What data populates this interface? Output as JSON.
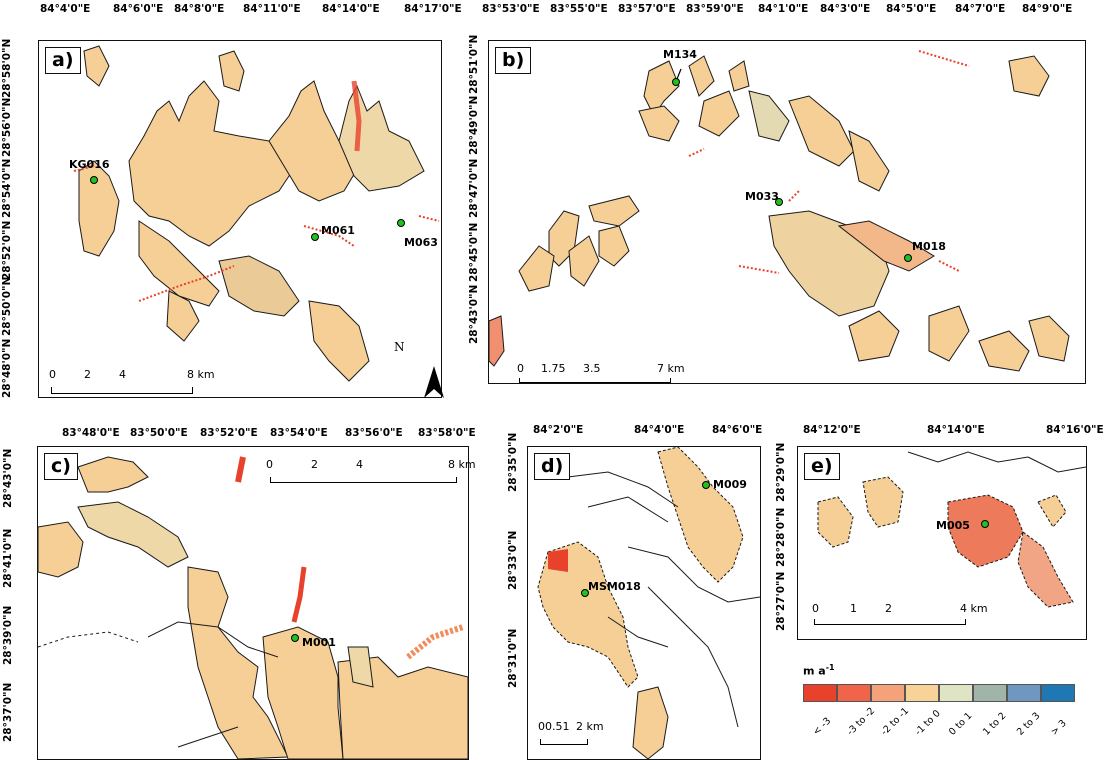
{
  "colors": {
    "outline": "#1a1a1a",
    "glacier_base": "#f6cf96",
    "pale": "#dfe3c6",
    "green": "#c8d6b2",
    "red": "#e8412c",
    "orange": "#f28c5a",
    "point": "#22c122"
  },
  "panels": {
    "a": {
      "label": "a)",
      "top_ticks": [
        "84°4'0\"E",
        "84°6'0\"E",
        "84°8'0\"E",
        "84°11'0\"E",
        "84°14'0\"E",
        "84°17'0\"E"
      ],
      "left_ticks": [
        "28°58'0\"N",
        "28°56'0\"N",
        "28°54'0\"N",
        "28°52'0\"N",
        "28°50'0\"N",
        "28°48'0\"N"
      ],
      "sites": [
        "KG016",
        "M061",
        "M063"
      ],
      "scale": {
        "labels": [
          "0",
          "2",
          "4",
          "8 km"
        ]
      },
      "north": "N"
    },
    "b": {
      "label": "b)",
      "top_ticks": [
        "83°53'0\"E",
        "83°55'0\"E",
        "83°57'0\"E",
        "83°59'0\"E",
        "84°1'0\"E",
        "84°3'0\"E",
        "84°5'0\"E",
        "84°7'0\"E",
        "84°9'0\"E"
      ],
      "left_ticks": [
        "28°51'0\"N",
        "28°49'0\"N",
        "28°47'0\"N",
        "28°45'0\"N",
        "28°43'0\"N"
      ],
      "sites": [
        "M134",
        "M033",
        "M018"
      ],
      "scale": {
        "labels": [
          "0",
          "1.75",
          "3.5",
          "7 km"
        ]
      }
    },
    "c": {
      "label": "c)",
      "top_ticks": [
        "83°48'0\"E",
        "83°50'0\"E",
        "83°52'0\"E",
        "83°54'0\"E",
        "83°56'0\"E",
        "83°58'0\"E"
      ],
      "left_ticks": [
        "28°43'0\"N",
        "28°41'0\"N",
        "28°39'0\"N",
        "28°37'0\"N"
      ],
      "sites": [
        "M001"
      ],
      "scale": {
        "labels": [
          "0",
          "2",
          "4",
          "8 km"
        ]
      }
    },
    "d": {
      "label": "d)",
      "top_ticks": [
        "84°2'0\"E",
        "84°4'0\"E",
        "84°6'0\"E"
      ],
      "left_ticks": [
        "28°35'0\"N",
        "28°33'0\"N",
        "28°31'0\"N"
      ],
      "sites": [
        "M009",
        "MSM018"
      ],
      "scale": {
        "labels": [
          "00.51",
          "2 km"
        ]
      }
    },
    "e": {
      "label": "e)",
      "top_ticks": [
        "84°12'0\"E",
        "84°14'0\"E",
        "84°16'0\"E"
      ],
      "left_ticks": [
        "28°29'0\"N",
        "28°28'0\"N",
        "28°27'0\"N"
      ],
      "sites": [
        "M005"
      ],
      "scale": {
        "labels": [
          "0",
          "1",
          "2",
          "4 km"
        ]
      }
    }
  },
  "legend": {
    "unit": "m a",
    "unit_sup": "-1",
    "classes": [
      {
        "label": "< -3",
        "color": "#e8412c"
      },
      {
        "label": "-3 to -2",
        "color": "#f0654a"
      },
      {
        "label": "-2 to -1",
        "color": "#f5a179"
      },
      {
        "label": "-1 to 0",
        "color": "#f8d398"
      },
      {
        "label": "0 to 1",
        "color": "#dfe5c4"
      },
      {
        "label": "1 to 2",
        "color": "#9fb5a8"
      },
      {
        "label": "2 to 3",
        "color": "#6f97c0"
      },
      {
        "label": "> 3",
        "color": "#1f77b4"
      }
    ]
  }
}
